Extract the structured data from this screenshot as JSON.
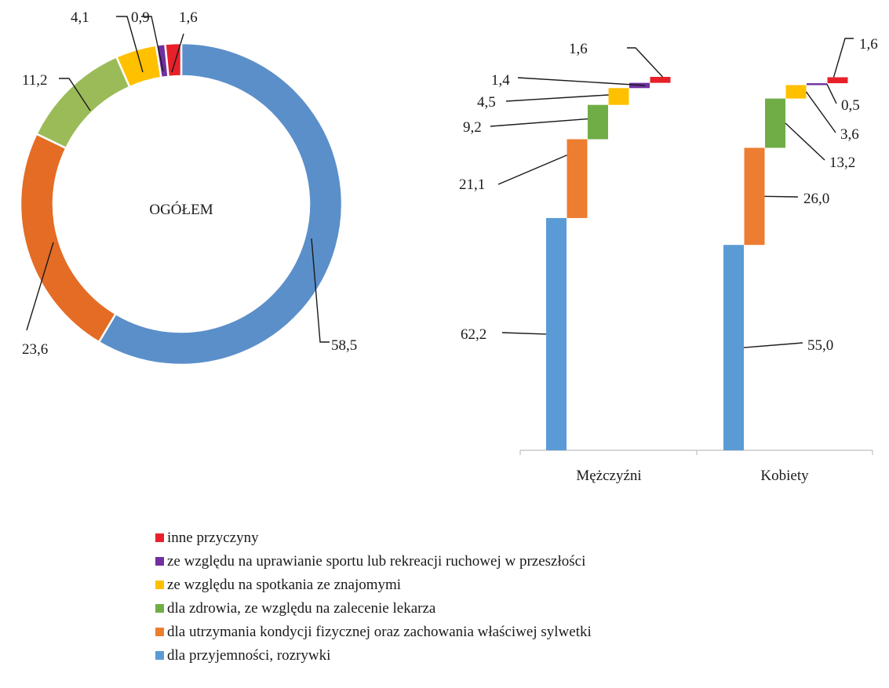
{
  "chart_data": [
    {
      "type": "pie",
      "variant": "donut",
      "center_label": "OGÓŁEM",
      "start_angle_deg": 0,
      "direction": "clockwise",
      "slices": [
        {
          "category_index": 0,
          "value": 58.5,
          "label": "58,5"
        },
        {
          "category_index": 1,
          "value": 23.6,
          "label": "23,6"
        },
        {
          "category_index": 2,
          "value": 11.2,
          "label": "11,2"
        },
        {
          "category_index": 3,
          "value": 4.1,
          "label": "4,1"
        },
        {
          "category_index": 4,
          "value": 0.9,
          "label": "0,9"
        },
        {
          "category_index": 5,
          "value": 1.6,
          "label": "1,6"
        }
      ]
    },
    {
      "type": "bar",
      "variant": "waterfall-stacked",
      "groups": [
        "Mężczyźni",
        "Kobiety"
      ],
      "series": [
        {
          "category_index": 0,
          "values": [
            62.2,
            55.0
          ],
          "labels": [
            "62,2",
            "55,0"
          ]
        },
        {
          "category_index": 1,
          "values": [
            21.1,
            26.0
          ],
          "labels": [
            "21,1",
            "26,0"
          ]
        },
        {
          "category_index": 2,
          "values": [
            9.2,
            13.2
          ],
          "labels": [
            "9,2",
            "13,2"
          ]
        },
        {
          "category_index": 3,
          "values": [
            4.5,
            3.6
          ],
          "labels": [
            "4,5",
            "3,6"
          ]
        },
        {
          "category_index": 4,
          "values": [
            1.4,
            0.5
          ],
          "labels": [
            "1,4",
            "0,5"
          ]
        },
        {
          "category_index": 5,
          "values": [
            1.6,
            1.6
          ],
          "labels": [
            "1,6",
            "1,6"
          ]
        }
      ],
      "grid": false
    }
  ],
  "categories": [
    {
      "name": "dla przyjemności, rozrywki",
      "color": "#5b9bd5"
    },
    {
      "name": "dla utrzymania kondycji fizycznej oraz zachowania właściwej sylwetki",
      "color": "#ed7d31"
    },
    {
      "name": "dla zdrowia, ze względu na zalecenie lekarza",
      "color": "#70ad47"
    },
    {
      "name": "ze względu na spotkania ze znajomymi",
      "color": "#ffc000"
    },
    {
      "name": "ze względu na uprawianie sportu lub rekreacji ruchowej w przeszłości",
      "color": "#7030a0"
    },
    {
      "name": "inne przyczyny",
      "color": "#e8202a"
    }
  ],
  "donut_colors": [
    "#5b8fc9",
    "#e46c25",
    "#9bbb59",
    "#ffc000",
    "#7030a0",
    "#e8202a"
  ],
  "legend": {
    "position": "bottom",
    "order": [
      5,
      4,
      3,
      2,
      1,
      0
    ]
  }
}
